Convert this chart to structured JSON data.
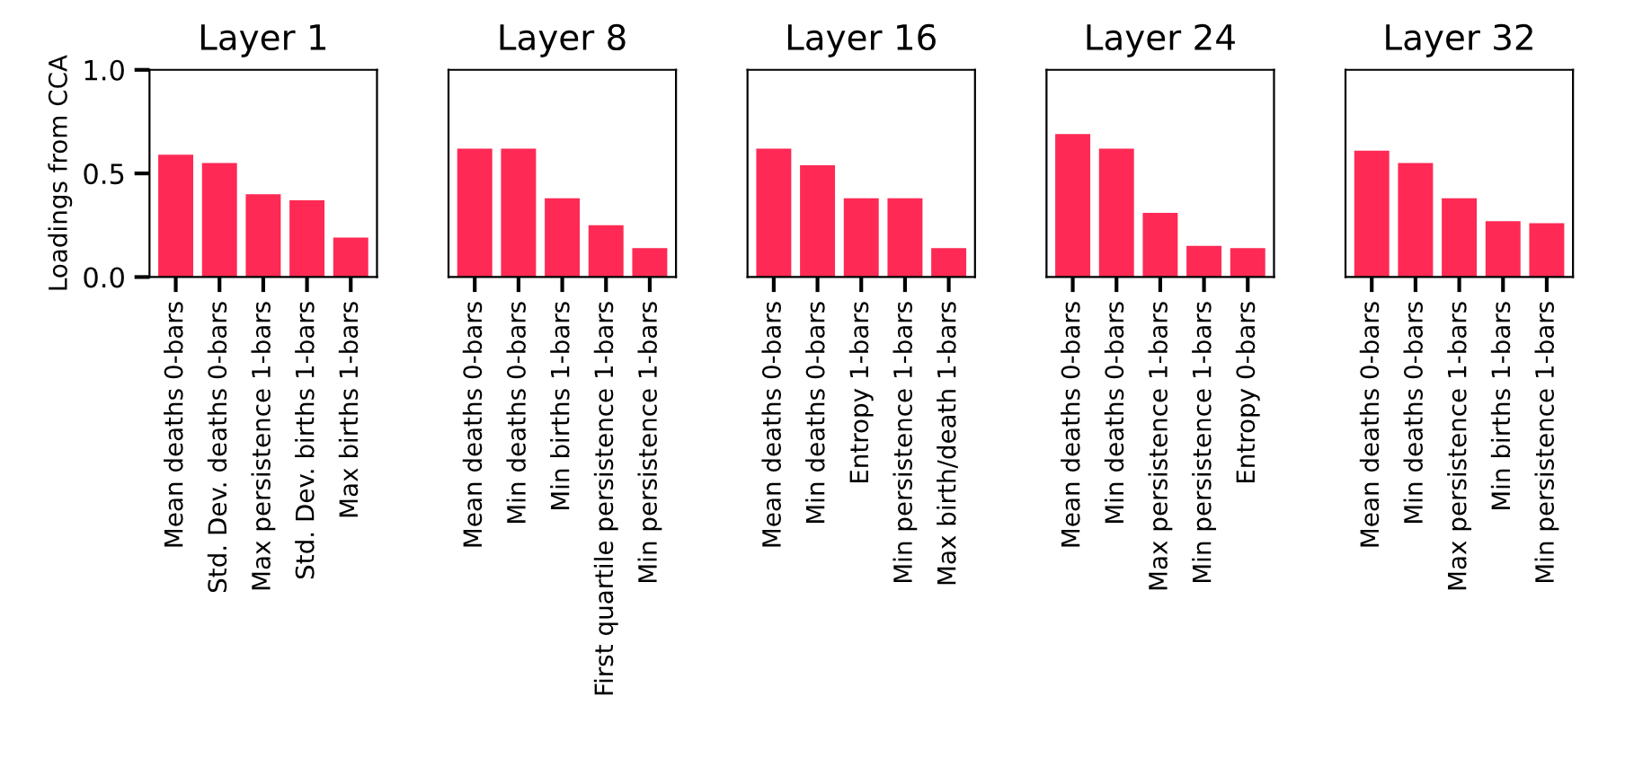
{
  "chart_data": [
    {
      "type": "bar",
      "title": "Layer 1",
      "ylabel": "Loadings from CCA",
      "categories": [
        "Mean deaths 0-bars",
        "Std. Dev. deaths 0-bars",
        "Max persistence 1-bars",
        "Std. Dev. births 1-bars",
        "Max births 1-bars"
      ],
      "values": [
        0.59,
        0.55,
        0.4,
        0.37,
        0.19
      ],
      "color": "#fe2a55",
      "ylim": [
        0,
        1.0
      ],
      "yticks": [
        {
          "value": 0,
          "label": "0.0"
        },
        {
          "value": 0.5,
          "label": "0.5"
        },
        {
          "value": 1.0,
          "label": "1.0"
        }
      ],
      "grid": false
    },
    {
      "type": "bar",
      "title": "Layer 8",
      "categories": [
        "Mean deaths 0-bars",
        "Min deaths 0-bars",
        "Min births 1-bars",
        "First quartile persistence 1-bars",
        "Min persistence 1-bars"
      ],
      "values": [
        0.62,
        0.62,
        0.38,
        0.25,
        0.14
      ],
      "color": "#fe2a55",
      "ylim": [
        0,
        1.0
      ],
      "tick_labels": "x",
      "grid": false
    },
    {
      "type": "bar",
      "title": "Layer 16",
      "categories": [
        "Mean deaths 0-bars",
        "Min deaths 0-bars",
        "Entropy 1-bars",
        "Min persistence 1-bars",
        "Max birth/death 1-bars"
      ],
      "values": [
        0.62,
        0.54,
        0.38,
        0.38,
        0.14
      ],
      "color": "#fe2a55",
      "ylim": [
        0,
        1.0
      ],
      "tick_labels": "x",
      "grid": false
    },
    {
      "type": "bar",
      "title": "Layer 24",
      "categories": [
        "Mean deaths 0-bars",
        "Min deaths 0-bars",
        "Max persistence 1-bars",
        "Min persistence 1-bars",
        "Entropy 0-bars"
      ],
      "values": [
        0.69,
        0.62,
        0.31,
        0.15,
        0.14
      ],
      "color": "#fe2a55",
      "ylim": [
        0,
        1.0
      ],
      "tick_labels": "x",
      "grid": false
    },
    {
      "type": "bar",
      "title": "Layer 32",
      "categories": [
        "Mean deaths 0-bars",
        "Min deaths 0-bars",
        "Max persistence 1-bars",
        "Min births 1-bars",
        "Min persistence 1-bars"
      ],
      "values": [
        0.61,
        0.55,
        0.38,
        0.27,
        0.26
      ],
      "color": "#fe2a55",
      "ylim": [
        0,
        1.0
      ],
      "tick_labels": "x",
      "grid": false
    }
  ]
}
